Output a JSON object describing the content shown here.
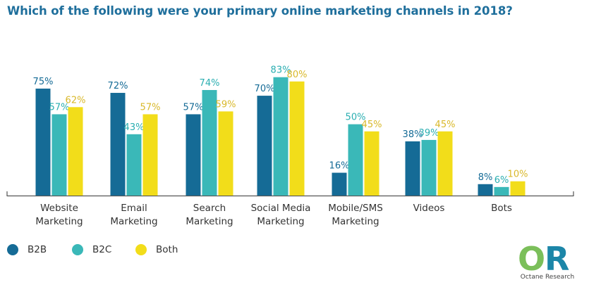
{
  "title": "Which of the following were your primary online marketing channels in 2018?",
  "colors": {
    "B2B": "#156b96",
    "B2C": "#3ab8b8",
    "Both": "#f2dd1a",
    "B2B_label": "#156b96",
    "B2C_label": "#2aaeb1",
    "Both_label": "#d9b82a"
  },
  "chart_data": {
    "type": "bar",
    "title": "Which of the following were your primary online marketing channels in 2018?",
    "xlabel": "",
    "ylabel": "",
    "ylim": [
      0,
      100
    ],
    "grid": false,
    "legend": "bottom-left",
    "categories": [
      [
        "Website",
        "Marketing"
      ],
      [
        "Email",
        "Marketing"
      ],
      [
        "Search",
        "Marketing"
      ],
      [
        "Social Media",
        "Marketing"
      ],
      [
        "Mobile/SMS",
        "Marketing"
      ],
      [
        "Videos"
      ],
      [
        "Bots"
      ]
    ],
    "series": [
      {
        "name": "B2B",
        "values": [
          75,
          72,
          57,
          70,
          16,
          38,
          8
        ]
      },
      {
        "name": "B2C",
        "values": [
          57,
          43,
          74,
          83,
          50,
          39,
          6
        ]
      },
      {
        "name": "Both",
        "values": [
          62,
          57,
          59,
          80,
          45,
          45,
          10
        ]
      }
    ]
  },
  "legend": [
    {
      "label": "B2B"
    },
    {
      "label": "B2C"
    },
    {
      "label": "Both"
    }
  ],
  "logo": {
    "mark": "OR",
    "text": "Octane Research"
  }
}
